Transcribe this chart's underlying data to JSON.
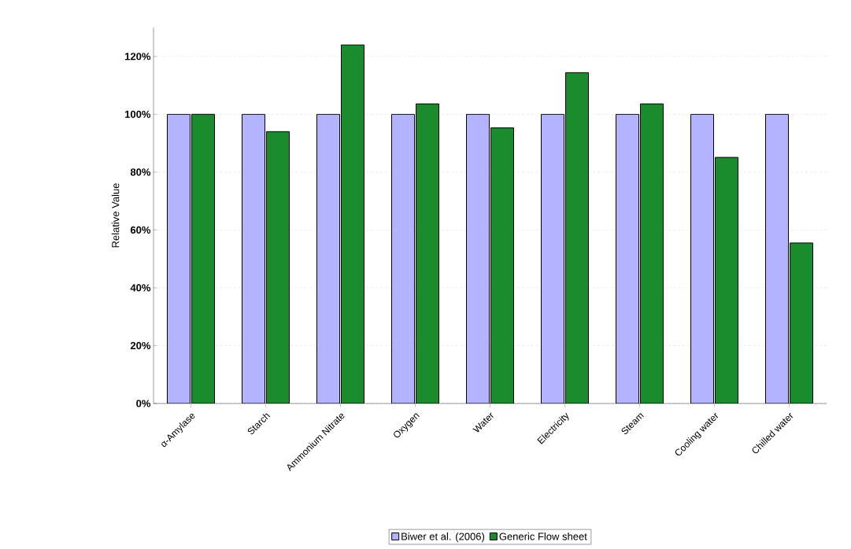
{
  "chart_data": {
    "type": "bar",
    "ylabel": "Relative Value",
    "categories": [
      "α-Amylase",
      "Starch",
      "Ammonium Nitrate",
      "Oxygen",
      "Water",
      "Electricity",
      "Steam",
      "Cooling water",
      "Chilled water"
    ],
    "series": [
      {
        "name": "Biwer et al. (2006)",
        "color": "#b3b3ff",
        "values": [
          100,
          100,
          100,
          100,
          100,
          100,
          100,
          100,
          100
        ]
      },
      {
        "name": "Generic Flow sheet",
        "color": "#1a8c2e",
        "values": [
          100,
          94,
          124,
          103.6,
          95.3,
          114.4,
          103.6,
          85.1,
          55.5
        ]
      }
    ],
    "ylim": [
      0,
      130
    ],
    "yticks": [
      {
        "value": 0,
        "label": "0%"
      },
      {
        "value": 20,
        "label": "20%"
      },
      {
        "value": 40,
        "label": "40%"
      },
      {
        "value": 60,
        "label": "60%"
      },
      {
        "value": 80,
        "label": "80%"
      },
      {
        "value": 100,
        "label": "100%"
      },
      {
        "value": 120,
        "label": "120%"
      }
    ],
    "grid": "y",
    "legend": "bottom"
  }
}
